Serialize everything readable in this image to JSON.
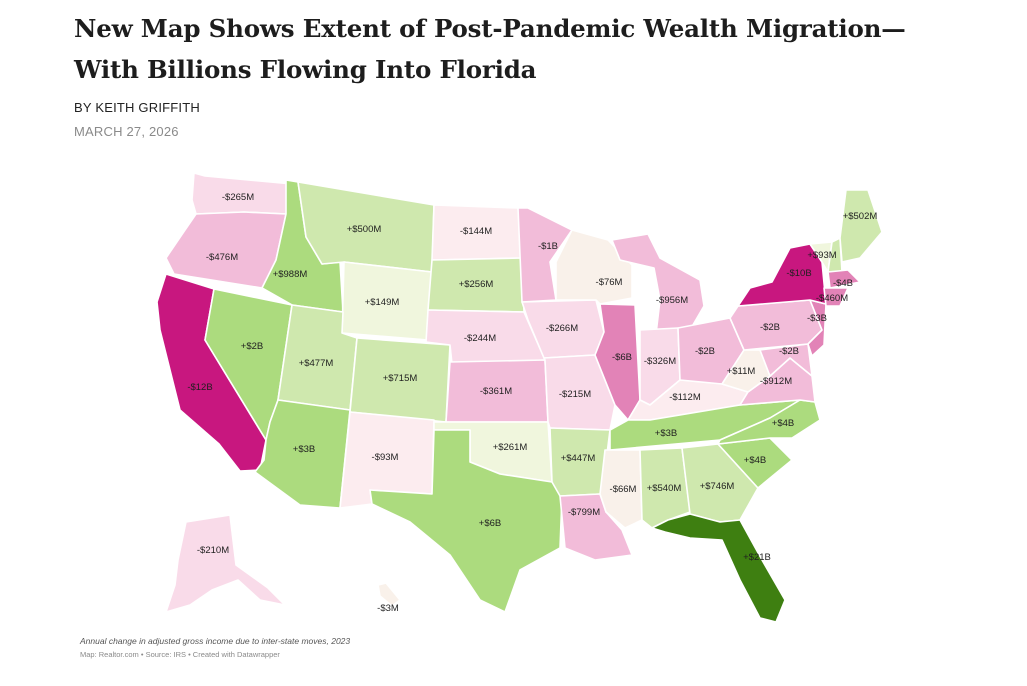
{
  "article": {
    "headline_line1": "New Map Shows Extent of Post-Pandemic Wealth Migration—",
    "headline_line2": "With Billions Flowing Into Florida",
    "byline_prefix": "BY",
    "author": "KEITH GRIFFITH",
    "date": "MARCH 27, 2026"
  },
  "map": {
    "caption": "Annual change in adjusted gross income due to inter-state moves, 2023",
    "credit": "Map: Realtor.com • Source: IRS • Created with Datawrapper",
    "colors": {
      "strong_loss": "#c8177f",
      "loss_2": "#e283b7",
      "loss_3": "#f2bcd9",
      "loss_4": "#f9dbe9",
      "loss_5": "#fcecef",
      "neutral": "#f9f1ea",
      "gain_1": "#f0f6dd",
      "gain_2": "#cfe8ae",
      "gain_3": "#acdb7e",
      "strong_gain": "#3e7f11"
    },
    "states": [
      {
        "name": "WA",
        "value": "-$265M",
        "color": "loss_4"
      },
      {
        "name": "OR",
        "value": "-$476M",
        "color": "loss_3"
      },
      {
        "name": "CA",
        "value": "-$12B",
        "color": "strong_loss"
      },
      {
        "name": "NV",
        "value": "+$2B",
        "color": "gain_3"
      },
      {
        "name": "ID",
        "value": "+$988M",
        "color": "gain_3"
      },
      {
        "name": "MT",
        "value": "+$500M",
        "color": "gain_2"
      },
      {
        "name": "WY",
        "value": "+$149M",
        "color": "gain_1"
      },
      {
        "name": "UT",
        "value": "+$477M",
        "color": "gain_2"
      },
      {
        "name": "AZ",
        "value": "+$3B",
        "color": "gain_3"
      },
      {
        "name": "CO",
        "value": "+$715M",
        "color": "gain_2"
      },
      {
        "name": "NM",
        "value": "-$93M",
        "color": "loss_5"
      },
      {
        "name": "ND",
        "value": "-$144M",
        "color": "loss_5"
      },
      {
        "name": "SD",
        "value": "+$256M",
        "color": "gain_2"
      },
      {
        "name": "NE",
        "value": "-$244M",
        "color": "loss_4"
      },
      {
        "name": "KS",
        "value": "-$361M",
        "color": "loss_3"
      },
      {
        "name": "OK",
        "value": "+$261M",
        "color": "gain_1"
      },
      {
        "name": "TX",
        "value": "+$6B",
        "color": "gain_3"
      },
      {
        "name": "MN",
        "value": "-$1B",
        "color": "loss_3"
      },
      {
        "name": "IA",
        "value": "-$266M",
        "color": "loss_4"
      },
      {
        "name": "MO",
        "value": "-$215M",
        "color": "loss_4"
      },
      {
        "name": "AR",
        "value": "+$447M",
        "color": "gain_2"
      },
      {
        "name": "LA",
        "value": "-$799M",
        "color": "loss_3"
      },
      {
        "name": "WI",
        "value": "-$76M",
        "color": "neutral"
      },
      {
        "name": "IL",
        "value": "-$6B",
        "color": "loss_2"
      },
      {
        "name": "MI",
        "value": "-$956M",
        "color": "loss_3"
      },
      {
        "name": "IN",
        "value": "-$326M",
        "color": "loss_4"
      },
      {
        "name": "OH",
        "value": "-$2B",
        "color": "loss_3"
      },
      {
        "name": "KY",
        "value": "-$112M",
        "color": "loss_5"
      },
      {
        "name": "TN",
        "value": "+$3B",
        "color": "gain_3"
      },
      {
        "name": "MS",
        "value": "-$66M",
        "color": "neutral"
      },
      {
        "name": "AL",
        "value": "+$540M",
        "color": "gain_2"
      },
      {
        "name": "GA",
        "value": "+$746M",
        "color": "gain_2"
      },
      {
        "name": "FL",
        "value": "+$21B",
        "color": "strong_gain"
      },
      {
        "name": "SC",
        "value": "+$4B",
        "color": "gain_3"
      },
      {
        "name": "NC",
        "value": "+$4B",
        "color": "gain_3"
      },
      {
        "name": "VA",
        "value": "-$912M",
        "color": "loss_3"
      },
      {
        "name": "WV",
        "value": "+$11M",
        "color": "neutral"
      },
      {
        "name": "PA",
        "value": "-$2B",
        "color": "loss_3"
      },
      {
        "name": "NY",
        "value": "-$10B",
        "color": "strong_loss"
      },
      {
        "name": "NJ",
        "value": "-$3B",
        "color": "loss_2"
      },
      {
        "name": "MD",
        "value": "-$2B",
        "color": "loss_3"
      },
      {
        "name": "VT",
        "value": "+$93M",
        "color": "gain_1"
      },
      {
        "name": "NH",
        "value": "",
        "color": "gain_2"
      },
      {
        "name": "ME",
        "value": "+$502M",
        "color": "gain_2"
      },
      {
        "name": "MA",
        "value": "-$4B",
        "color": "loss_2"
      },
      {
        "name": "CT",
        "value": "-$460M",
        "color": "loss_2"
      },
      {
        "name": "AK",
        "value": "-$210M",
        "color": "loss_4"
      },
      {
        "name": "HI",
        "value": "-$3M",
        "color": "neutral"
      }
    ]
  }
}
